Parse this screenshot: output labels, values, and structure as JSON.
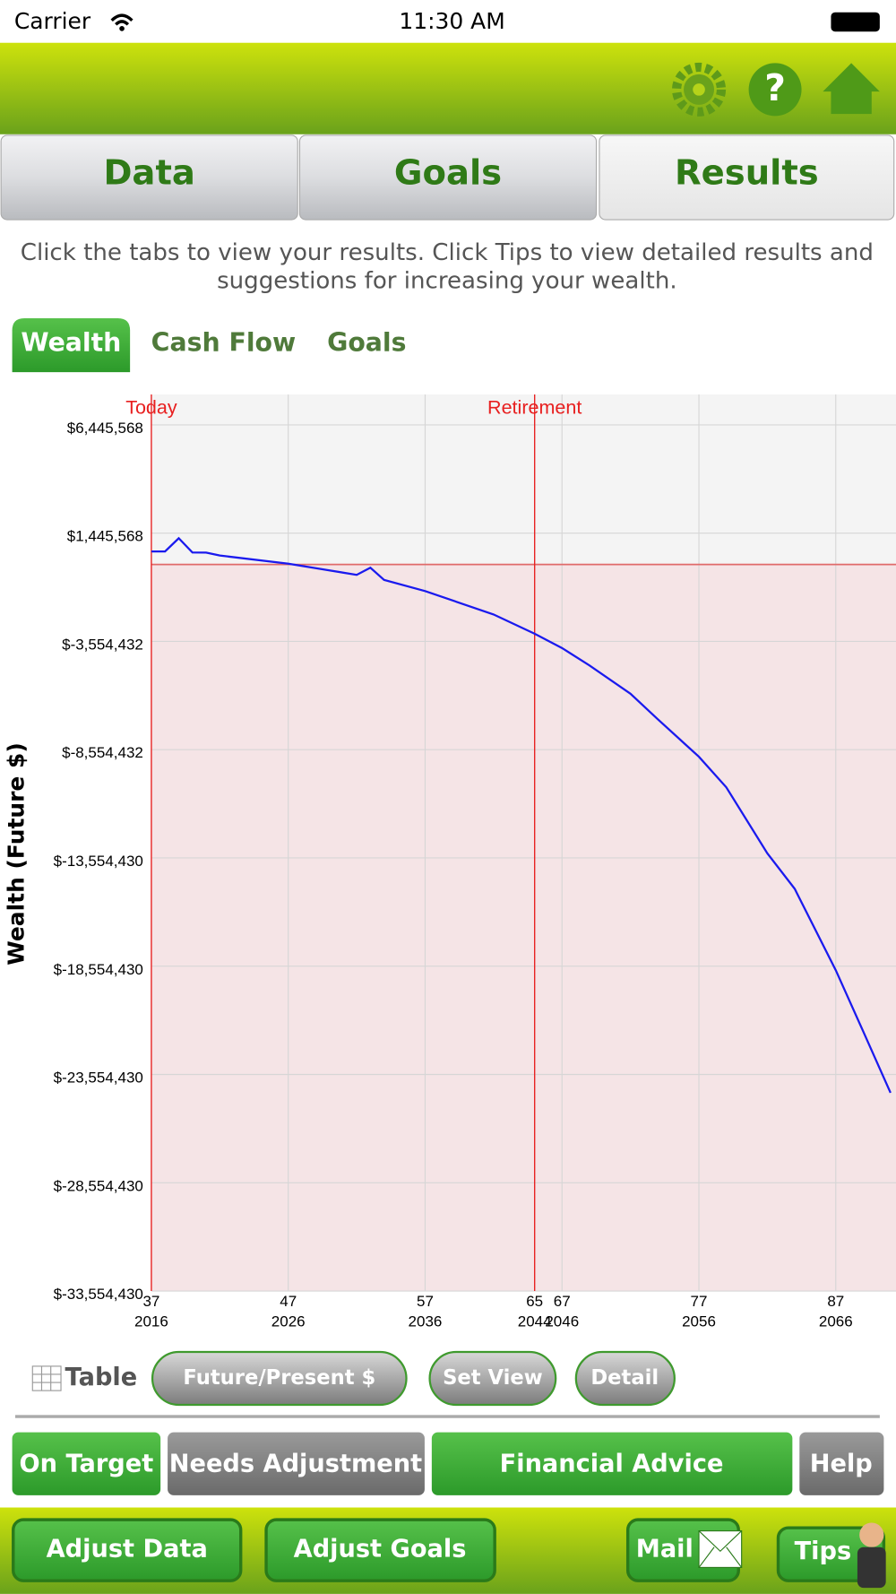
{
  "status_bar": {
    "carrier": "Carrier",
    "time": "11:30 AM"
  },
  "header": {
    "help_icon": "?"
  },
  "main_tabs": [
    "Data",
    "Goals",
    "Results"
  ],
  "instructions": [
    "Click the tabs to view your results. Click Tips to view detailed results and",
    "suggestions for increasing your wealth."
  ],
  "sub_tabs": [
    "Wealth",
    "Cash Flow",
    "Goals"
  ],
  "chart_data": {
    "type": "line",
    "y_label": "Wealth (Future $)",
    "x": [
      2016,
      2017,
      2018,
      2019,
      2020,
      2021,
      2026,
      2031,
      2032,
      2033,
      2036,
      2041,
      2044,
      2046,
      2048,
      2051,
      2053,
      2056,
      2058,
      2061,
      2063,
      2066,
      2068,
      2070
    ],
    "series": [
      {
        "color": "#1a1aee",
        "values": [
          600000,
          600000,
          1210000,
          553000,
          550000,
          413000,
          36000,
          -480000,
          -150000,
          -714000,
          -1230000,
          -2310000,
          -3200000,
          -3860000,
          -4660000,
          -5970000,
          -7150000,
          -8880000,
          -10290000,
          -13340000,
          -14980000,
          -18740000,
          -21560000,
          -24400000
        ]
      }
    ],
    "xlim": [
      2016,
      2070.4
    ],
    "ylim": [
      -33554430,
      7850000
    ],
    "xticks": [
      2016,
      2026,
      2036,
      2044,
      2046,
      2056,
      2066
    ],
    "age_ticks": [
      {
        "value": 2016,
        "label": "37"
      },
      {
        "value": 2026,
        "label": "47"
      },
      {
        "value": 2036,
        "label": "57"
      },
      {
        "value": 2044,
        "label": "65"
      },
      {
        "value": 2046,
        "label": "67"
      },
      {
        "value": 2056,
        "label": "77"
      },
      {
        "value": 2066,
        "label": "87"
      }
    ],
    "yticks": [
      {
        "value": 6445568,
        "label": "$6,445,568"
      },
      {
        "value": 1445568,
        "label": "$1,445,568"
      },
      {
        "value": -3554432,
        "label": "$-3,554,432"
      },
      {
        "value": -8554432,
        "label": "$-8,554,432"
      },
      {
        "value": -13554430,
        "label": "$-13,554,430"
      },
      {
        "value": -18554430,
        "label": "$-18,554,430"
      },
      {
        "value": -23554430,
        "label": "$-23,554,430"
      },
      {
        "value": -28554430,
        "label": "$-28,554,430"
      },
      {
        "value": -33554430,
        "label": "$-33,554,430"
      }
    ],
    "markers": [
      {
        "label": "Today",
        "x": 2016
      },
      {
        "label": "Retirement",
        "x": 2044
      }
    ],
    "threshold": 0,
    "grid": true
  },
  "chart_controls": [
    "Table",
    "Future/Present $",
    "Set View",
    "Detail"
  ],
  "status_buttons": [
    "On Target",
    "Needs Adjustment",
    "Financial Advice",
    "Help"
  ],
  "bottom_bar": [
    "Adjust Data",
    "Adjust Goals",
    "Mail",
    "Tips"
  ]
}
